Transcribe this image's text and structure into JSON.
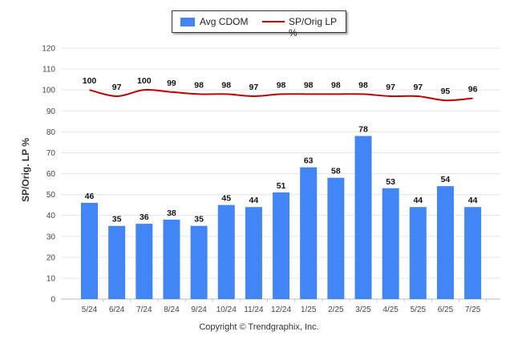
{
  "legend": {
    "bar_label": "Avg CDOM",
    "line_label": "SP/Orig LP %"
  },
  "ylabel": "SP/Orig. LP %",
  "copyright": "Copyright © Trendgraphix, Inc.",
  "colors": {
    "bar": "#4285f4",
    "line": "#c00000",
    "grid": "#e6e6e6",
    "axis_text": "#444444"
  },
  "chart_data": {
    "type": "bar",
    "categories": [
      "5/24",
      "6/24",
      "7/24",
      "8/24",
      "9/24",
      "10/24",
      "11/24",
      "12/24",
      "1/25",
      "2/25",
      "3/25",
      "4/25",
      "5/25",
      "6/25",
      "7/25"
    ],
    "series": [
      {
        "name": "Avg CDOM",
        "type": "bar",
        "values": [
          46,
          35,
          36,
          38,
          35,
          45,
          44,
          51,
          63,
          58,
          78,
          53,
          44,
          54,
          44
        ]
      },
      {
        "name": "SP/Orig LP %",
        "type": "line",
        "values": [
          100,
          97,
          100,
          99,
          98,
          98,
          97,
          98,
          98,
          98,
          98,
          97,
          97,
          95,
          96
        ]
      }
    ],
    "ylabel": "SP/Orig. LP %",
    "ylim": [
      0,
      120
    ],
    "yticks": [
      0,
      10,
      20,
      30,
      40,
      50,
      60,
      70,
      80,
      90,
      100,
      110,
      120
    ],
    "grid": true,
    "legend_position": "top-center"
  }
}
